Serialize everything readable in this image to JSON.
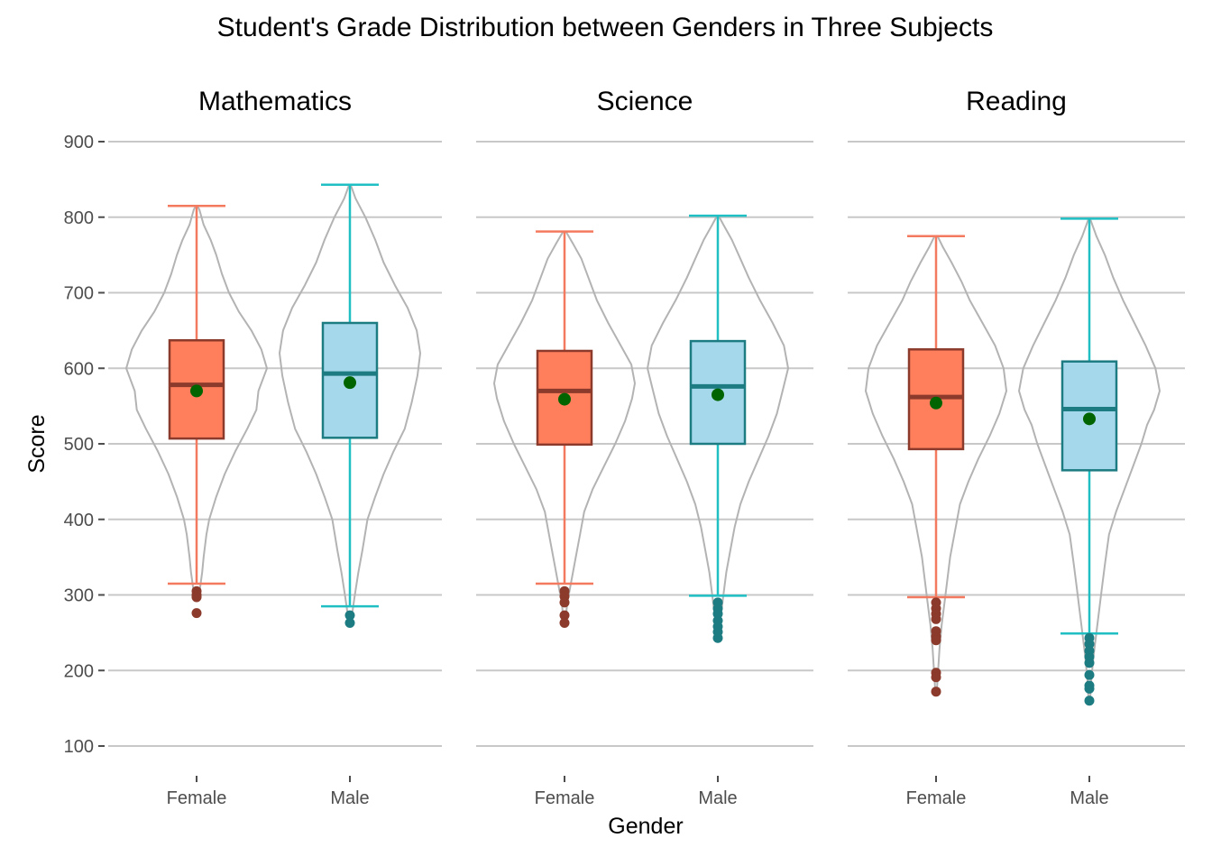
{
  "chart_data": {
    "type": "violin-box",
    "title": "Student's Grade Distribution between Genders in Three Subjects",
    "xlabel": "Gender",
    "ylabel": "Score",
    "ylim": [
      100,
      900
    ],
    "yticks": [
      "100",
      "200",
      "300",
      "400",
      "500",
      "600",
      "700",
      "800",
      "900"
    ],
    "categories": [
      "Female",
      "Male"
    ],
    "grid": true,
    "colors": {
      "female_fill": "#FF7F5C",
      "female_edge": "#8B3A2B",
      "female_whisker": "#F47A5F",
      "male_fill": "#A6D8EC",
      "male_edge": "#1C7C82",
      "male_whisker": "#1FBFC4",
      "mean": "#006400",
      "violin": "#B3B3B3",
      "grid": "#C8C8C8"
    },
    "panels": [
      {
        "subject": "Mathematics",
        "groups": [
          {
            "gender": "Female",
            "q1": 507,
            "median": 578,
            "q3": 637,
            "whisker_low": 315,
            "whisker_high": 815,
            "mean": 570,
            "outliers": [
              305,
              300,
              297,
              276
            ],
            "violin_density": [
              [
                296,
                0.02
              ],
              [
                310,
                0.05
              ],
              [
                330,
                0.08
              ],
              [
                350,
                0.1
              ],
              [
                380,
                0.14
              ],
              [
                400,
                0.18
              ],
              [
                430,
                0.28
              ],
              [
                460,
                0.4
              ],
              [
                490,
                0.55
              ],
              [
                520,
                0.72
              ],
              [
                545,
                0.85
              ],
              [
                570,
                0.88
              ],
              [
                600,
                1.0
              ],
              [
                625,
                0.92
              ],
              [
                650,
                0.78
              ],
              [
                675,
                0.6
              ],
              [
                700,
                0.46
              ],
              [
                725,
                0.36
              ],
              [
                750,
                0.28
              ],
              [
                770,
                0.2
              ],
              [
                790,
                0.1
              ],
              [
                810,
                0.04
              ],
              [
                815,
                0.01
              ]
            ]
          },
          {
            "gender": "Male",
            "q1": 508,
            "median": 593,
            "q3": 660,
            "whisker_low": 285,
            "whisker_high": 843,
            "mean": 581,
            "outliers": [
              273,
              263
            ],
            "violin_density": [
              [
                263,
                0.01
              ],
              [
                280,
                0.04
              ],
              [
                300,
                0.07
              ],
              [
                330,
                0.12
              ],
              [
                360,
                0.18
              ],
              [
                400,
                0.25
              ],
              [
                430,
                0.36
              ],
              [
                460,
                0.48
              ],
              [
                490,
                0.62
              ],
              [
                520,
                0.78
              ],
              [
                555,
                0.88
              ],
              [
                590,
                0.96
              ],
              [
                620,
                1.0
              ],
              [
                650,
                0.95
              ],
              [
                680,
                0.82
              ],
              [
                710,
                0.64
              ],
              [
                740,
                0.48
              ],
              [
                770,
                0.36
              ],
              [
                800,
                0.22
              ],
              [
                825,
                0.08
              ],
              [
                843,
                0.01
              ]
            ]
          }
        ]
      },
      {
        "subject": "Science",
        "groups": [
          {
            "gender": "Female",
            "q1": 499,
            "median": 570,
            "q3": 623,
            "whisker_low": 315,
            "whisker_high": 781,
            "mean": 559,
            "outliers": [
              305,
              298,
              290,
              273,
              263
            ],
            "violin_density": [
              [
                263,
                0.01
              ],
              [
                290,
                0.04
              ],
              [
                320,
                0.1
              ],
              [
                350,
                0.16
              ],
              [
                380,
                0.22
              ],
              [
                410,
                0.28
              ],
              [
                440,
                0.4
              ],
              [
                470,
                0.56
              ],
              [
                500,
                0.72
              ],
              [
                530,
                0.86
              ],
              [
                560,
                0.96
              ],
              [
                580,
                1.0
              ],
              [
                605,
                0.95
              ],
              [
                630,
                0.8
              ],
              [
                660,
                0.62
              ],
              [
                690,
                0.46
              ],
              [
                720,
                0.34
              ],
              [
                745,
                0.24
              ],
              [
                765,
                0.12
              ],
              [
                781,
                0.02
              ]
            ]
          },
          {
            "gender": "Male",
            "q1": 500,
            "median": 576,
            "q3": 636,
            "whisker_low": 299,
            "whisker_high": 802,
            "mean": 565,
            "outliers": [
              290,
              282,
              275,
              266,
              258,
              251,
              243
            ],
            "violin_density": [
              [
                243,
                0.01
              ],
              [
                270,
                0.04
              ],
              [
                300,
                0.08
              ],
              [
                330,
                0.12
              ],
              [
                360,
                0.18
              ],
              [
                390,
                0.24
              ],
              [
                420,
                0.32
              ],
              [
                450,
                0.44
              ],
              [
                480,
                0.58
              ],
              [
                510,
                0.72
              ],
              [
                540,
                0.84
              ],
              [
                570,
                0.92
              ],
              [
                600,
                1.0
              ],
              [
                630,
                0.94
              ],
              [
                660,
                0.78
              ],
              [
                690,
                0.6
              ],
              [
                720,
                0.44
              ],
              [
                745,
                0.32
              ],
              [
                770,
                0.2
              ],
              [
                790,
                0.08
              ],
              [
                802,
                0.01
              ]
            ]
          }
        ]
      },
      {
        "subject": "Reading",
        "groups": [
          {
            "gender": "Female",
            "q1": 493,
            "median": 562,
            "q3": 625,
            "whisker_low": 297,
            "whisker_high": 775,
            "mean": 554,
            "outliers": [
              290,
              282,
              275,
              268,
              252,
              245,
              240,
              197,
              191,
              172
            ],
            "violin_density": [
              [
                172,
                0.01
              ],
              [
                200,
                0.03
              ],
              [
                230,
                0.05
              ],
              [
                260,
                0.08
              ],
              [
                290,
                0.12
              ],
              [
                320,
                0.16
              ],
              [
                350,
                0.2
              ],
              [
                380,
                0.26
              ],
              [
                420,
                0.34
              ],
              [
                450,
                0.46
              ],
              [
                480,
                0.6
              ],
              [
                510,
                0.76
              ],
              [
                540,
                0.9
              ],
              [
                570,
                1.0
              ],
              [
                600,
                0.96
              ],
              [
                630,
                0.84
              ],
              [
                660,
                0.66
              ],
              [
                690,
                0.48
              ],
              [
                715,
                0.36
              ],
              [
                740,
                0.22
              ],
              [
                760,
                0.1
              ],
              [
                775,
                0.02
              ]
            ]
          },
          {
            "gender": "Male",
            "q1": 465,
            "median": 546,
            "q3": 609,
            "whisker_low": 249,
            "whisker_high": 798,
            "mean": 533,
            "outliers": [
              243,
              235,
              226,
              218,
              210,
              194,
              180,
              176,
              160
            ],
            "violin_density": [
              [
                160,
                0.01
              ],
              [
                190,
                0.03
              ],
              [
                220,
                0.06
              ],
              [
                250,
                0.1
              ],
              [
                280,
                0.14
              ],
              [
                310,
                0.18
              ],
              [
                340,
                0.22
              ],
              [
                380,
                0.28
              ],
              [
                410,
                0.38
              ],
              [
                440,
                0.5
              ],
              [
                470,
                0.62
              ],
              [
                500,
                0.74
              ],
              [
                525,
                0.82
              ],
              [
                545,
                0.92
              ],
              [
                570,
                1.0
              ],
              [
                600,
                0.94
              ],
              [
                630,
                0.8
              ],
              [
                660,
                0.64
              ],
              [
                690,
                0.48
              ],
              [
                720,
                0.34
              ],
              [
                750,
                0.22
              ],
              [
                775,
                0.1
              ],
              [
                798,
                0.01
              ]
            ]
          }
        ]
      }
    ]
  }
}
